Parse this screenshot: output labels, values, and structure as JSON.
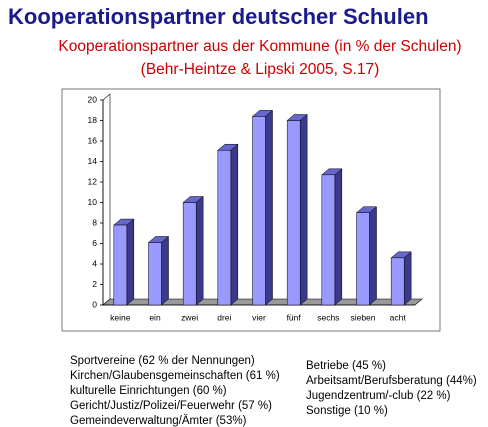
{
  "slide_title": "Kooperationspartner deutscher Schulen",
  "chart_data": {
    "type": "bar",
    "title": "Kooperationspartner aus der Kommune (in % der Schulen)",
    "subtitle": "(Behr-Heintze & Lipski 2005, S.17)",
    "categories": [
      "keine",
      "ein",
      "zwei",
      "drei",
      "vier",
      "fünf",
      "sechs",
      "sieben",
      "acht"
    ],
    "values": [
      7.8,
      6.1,
      10,
      15.1,
      18.4,
      18,
      12.7,
      9,
      4.6
    ],
    "color": "#9999ff",
    "ylim": [
      0,
      20
    ],
    "yticks": [
      0,
      2,
      4,
      6,
      8,
      10,
      12,
      14,
      16,
      18,
      20
    ],
    "grid": false
  },
  "notes": {
    "left": [
      "Sportvereine (62 % der Nennungen)",
      "Kirchen/Glaubensgemeinschaften (61 %)",
      "kulturelle Einrichtungen (60 %)",
      "Gericht/Justiz/Polizei/Feuerwehr (57 %)",
      "Gemeindeverwaltung/Ämter (53%)"
    ],
    "right": [
      "Betriebe (45 %)",
      "Arbeitsamt/Berufsberatung (44%)",
      "Jugendzentrum/-club (22 %)",
      "Sonstige (10 %)"
    ]
  }
}
